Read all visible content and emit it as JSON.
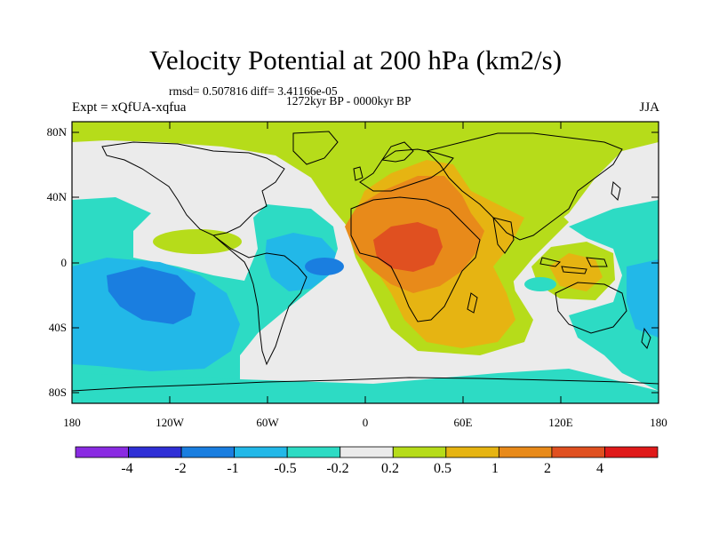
{
  "title": "Velocity Potential at 200 hPa (km2/s)",
  "stats_line": "rmsd= 0.507816 diff= 3.41166e-05",
  "period_line": "1272kyr BP - 0000kyr BP",
  "experiment": "Expt = xQfUA-xqfua",
  "season": "JJA",
  "lat_labels": [
    "80N",
    "40N",
    "0",
    "40S",
    "80S"
  ],
  "lon_labels": [
    "180",
    "120W",
    "60W",
    "0",
    "60E",
    "120E",
    "180"
  ],
  "colorbar": {
    "labels": [
      "-4",
      "-2",
      "-1",
      "-0.5",
      "-0.2",
      "0.2",
      "0.5",
      "1",
      "2",
      "4"
    ],
    "colors": [
      "#8a2be2",
      "#2f2fd6",
      "#1a7ee0",
      "#22b8e8",
      "#2ddbc4",
      "#ebebeb",
      "#b6dc1a",
      "#e6b412",
      "#e88a1a",
      "#e05020",
      "#e01a1a"
    ]
  },
  "map_colors": {
    "ocean_base": "#ebebeb",
    "neg_weak": "#2ddbc4",
    "neg_mid": "#22b8e8",
    "neg_strong": "#1a7ee0",
    "pos_weak": "#b6dc1a",
    "pos_mid": "#e6b412",
    "pos_strong": "#e88a1a",
    "pos_max": "#e05020"
  }
}
